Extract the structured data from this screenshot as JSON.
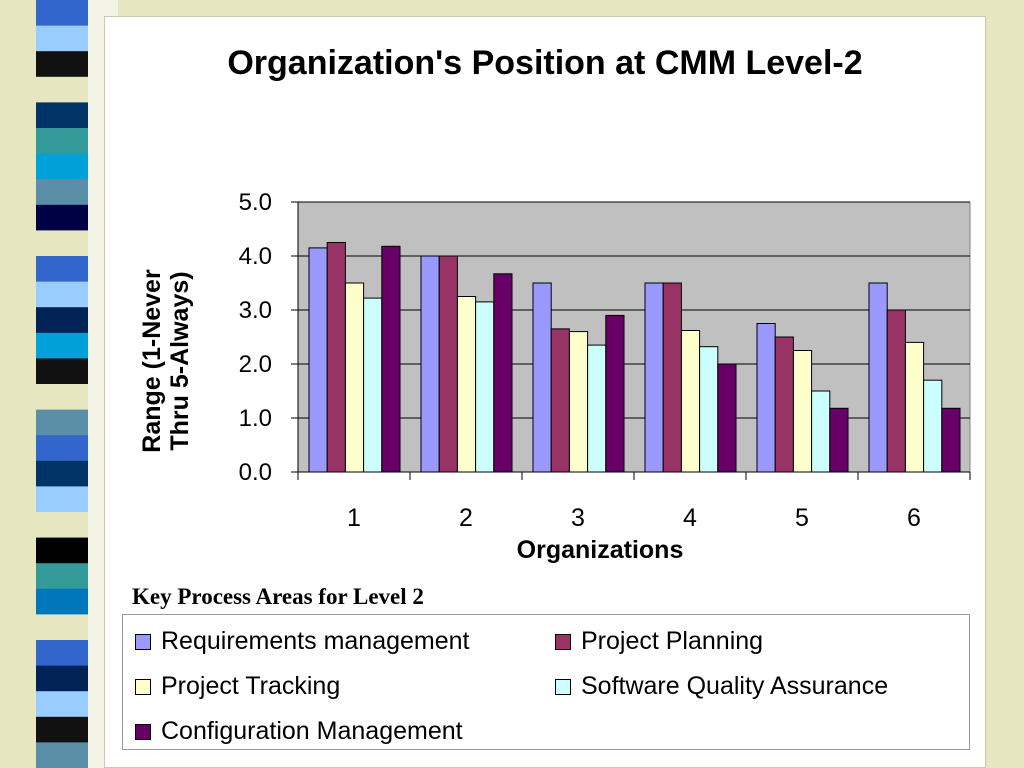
{
  "chart_data": {
    "type": "bar",
    "title": "Organization's Position at CMM Level-2",
    "xlabel": "Organizations",
    "ylabel_lines": [
      "Range (1-Never",
      "Thru 5-Always)"
    ],
    "categories": [
      "1",
      "2",
      "3",
      "4",
      "5",
      "6"
    ],
    "ylim": [
      0,
      5
    ],
    "yticks": [
      "0.0",
      "1.0",
      "2.0",
      "3.0",
      "4.0",
      "5.0"
    ],
    "grid": true,
    "plot_background": "#c0c0c0",
    "legend_title": "Key Process Areas for Level 2",
    "legend_position": "bottom",
    "series": [
      {
        "name": "Requirements management",
        "color": "#9999ff",
        "values": [
          4.15,
          4.0,
          3.5,
          3.5,
          2.75,
          3.5
        ]
      },
      {
        "name": "Project Planning",
        "color": "#993366",
        "values": [
          4.25,
          4.0,
          2.65,
          3.5,
          2.5,
          3.0
        ]
      },
      {
        "name": "Project Tracking",
        "color": "#ffffcc",
        "values": [
          3.5,
          3.25,
          2.6,
          2.62,
          2.25,
          2.4
        ]
      },
      {
        "name": "Software Quality Assurance",
        "color": "#ccffff",
        "values": [
          3.22,
          3.15,
          2.35,
          2.32,
          1.5,
          1.7
        ]
      },
      {
        "name": "Configuration Management",
        "color": "#660066",
        "values": [
          4.18,
          3.67,
          2.9,
          2.0,
          1.18,
          1.18
        ]
      }
    ]
  },
  "decor": {
    "stripe_colors": [
      "#3366cc",
      "#99ccff",
      "#111111",
      "#e6e6c0",
      "#003366",
      "#339999",
      "#00a0d8",
      "#5b8fa8",
      "#000044",
      "#e6e6c0",
      "#3366cc",
      "#99ccff",
      "#002255",
      "#00a0d8",
      "#111111",
      "#e6e6c0",
      "#5b8fa8",
      "#3366cc",
      "#003366",
      "#99ccff",
      "#e6e6c0",
      "#000000",
      "#339999",
      "#0077bb",
      "#e6e6c0",
      "#3366cc",
      "#002255",
      "#99ccff",
      "#111111",
      "#5b8fa8"
    ]
  }
}
